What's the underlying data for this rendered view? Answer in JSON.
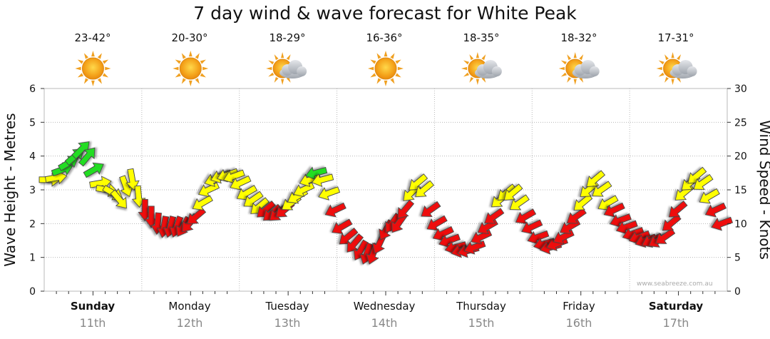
{
  "chart_data": {
    "type": "line",
    "title": "7 day wind & wave forecast for White Peak",
    "ylabel_left": "Wave Height - Metres",
    "ylabel_right": "Wind Speed - Knots",
    "ylim_left": [
      0,
      6
    ],
    "ylim_right": [
      0,
      30
    ],
    "yticks_left": [
      "0",
      "1",
      "2",
      "3",
      "4",
      "5",
      "6"
    ],
    "yticks_right": [
      "0",
      "5",
      "10",
      "15",
      "20",
      "25",
      "30"
    ],
    "days": [
      {
        "name": "Sunday",
        "date": "11th",
        "temp": "23-42°",
        "weather": "sunny",
        "bold": true
      },
      {
        "name": "Monday",
        "date": "12th",
        "temp": "20-30°",
        "weather": "sunny",
        "bold": false
      },
      {
        "name": "Tuesday",
        "date": "13th",
        "temp": "18-29°",
        "weather": "partly-cloudy",
        "bold": false
      },
      {
        "name": "Wednesday",
        "date": "14th",
        "temp": "16-36°",
        "weather": "sunny",
        "bold": false
      },
      {
        "name": "Thursday",
        "date": "15th",
        "temp": "18-35°",
        "weather": "partly-cloudy",
        "bold": false
      },
      {
        "name": "Friday",
        "date": "16th",
        "temp": "18-32°",
        "weather": "partly-cloudy",
        "bold": false
      },
      {
        "name": "Saturday",
        "date": "17th",
        "temp": "17-31°",
        "weather": "partly-cloudy",
        "bold": true
      }
    ],
    "wind_knots": [
      16.5,
      16.8,
      18,
      19,
      20,
      21,
      20,
      18,
      16,
      15,
      14.5,
      13.5,
      15.5,
      16.5,
      14,
      12,
      11,
      10,
      9.5,
      9.5,
      9.5,
      9.5,
      10,
      11,
      13,
      15,
      16.5,
      17,
      17.2,
      17,
      16,
      14.5,
      13.5,
      12.5,
      12,
      11.5,
      11.5,
      12,
      13,
      14,
      15,
      16.5,
      17.5,
      16.5,
      14.5,
      12,
      9.5,
      8,
      7,
      6,
      5.5,
      5.5,
      7,
      9,
      10,
      10,
      12,
      14.5,
      16,
      15,
      12,
      10,
      8.5,
      7.5,
      6.5,
      6,
      6,
      6.5,
      8,
      9.5,
      11,
      13.5,
      14.5,
      14.5,
      13,
      11,
      9.5,
      8,
      7,
      6.5,
      7,
      8,
      9.5,
      11,
      13,
      15,
      16.5,
      15,
      13,
      12,
      10.5,
      9.5,
      8.5,
      8,
      7.5,
      7.5,
      7.5,
      8,
      10,
      12,
      14.5,
      16,
      17,
      16,
      14,
      12,
      10
    ],
    "wind_dir_deg": [
      90,
      80,
      70,
      60,
      50,
      45,
      40,
      60,
      80,
      100,
      120,
      140,
      160,
      170,
      175,
      180,
      180,
      185,
      190,
      195,
      200,
      210,
      220,
      230,
      240,
      245,
      250,
      250,
      250,
      250,
      245,
      240,
      235,
      230,
      230,
      230,
      230,
      230,
      235,
      240,
      245,
      250,
      255,
      255,
      250,
      245,
      240,
      230,
      220,
      210,
      200,
      200,
      205,
      210,
      215,
      215,
      220,
      225,
      230,
      230,
      235,
      240,
      245,
      250,
      255,
      255,
      255,
      250,
      245,
      240,
      235,
      230,
      230,
      230,
      235,
      240,
      245,
      250,
      255,
      255,
      250,
      245,
      240,
      235,
      230,
      230,
      230,
      235,
      240,
      245,
      250,
      250,
      250,
      250,
      250,
      245,
      240,
      235,
      230,
      230,
      230,
      230,
      230,
      235,
      240,
      245,
      250
    ]
  }
}
